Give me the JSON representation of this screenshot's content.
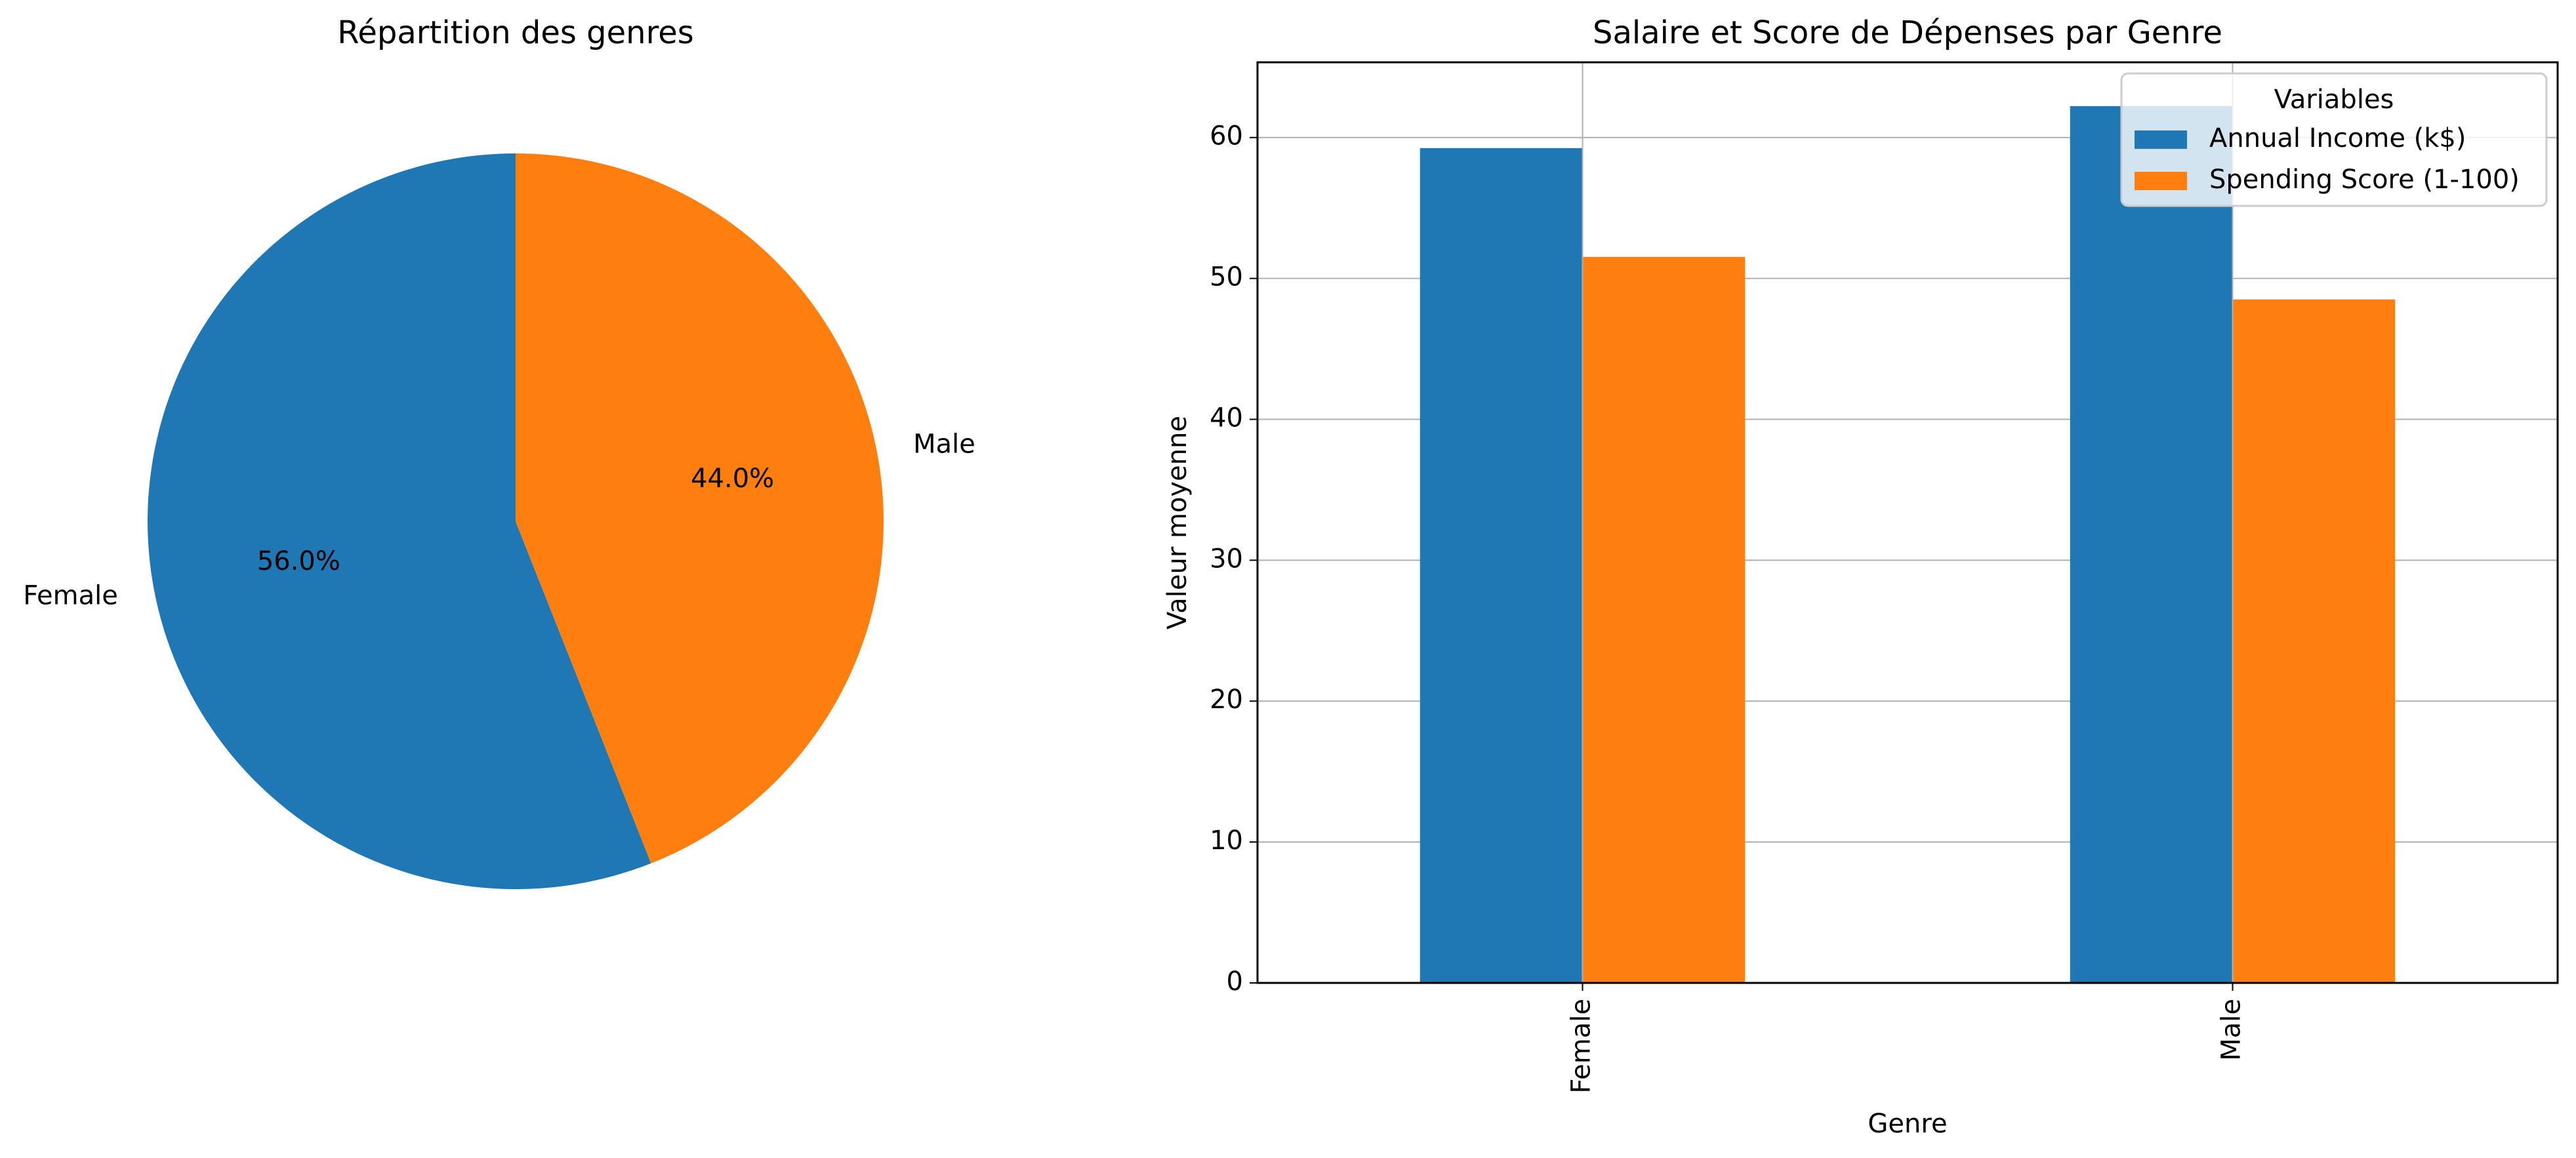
{
  "colors": {
    "blue": "#1f77b4",
    "orange": "#ff7f0e",
    "grid": "#b0b0b0",
    "axis": "#000000"
  },
  "chart_data": [
    {
      "type": "pie",
      "title": "Répartition des genres",
      "labels": [
        "Female",
        "Male"
      ],
      "values": [
        56.0,
        44.0
      ],
      "autopct": [
        "56.0%",
        "44.0%"
      ],
      "colors": [
        "#1f77b4",
        "#ff7f0e"
      ],
      "startangle": 90
    },
    {
      "type": "bar",
      "title": "Salaire et Score de Dépenses par Genre",
      "xlabel": "Genre",
      "ylabel": "Valeur moyenne",
      "categories": [
        "Female",
        "Male"
      ],
      "series": [
        {
          "name": "Annual Income (k$)",
          "values": [
            59.25,
            62.23
          ],
          "color": "#1f77b4"
        },
        {
          "name": "Spending Score (1-100)",
          "values": [
            51.53,
            48.51
          ],
          "color": "#ff7f0e"
        }
      ],
      "ylim": [
        0,
        65.34
      ],
      "yticks": [
        0,
        10,
        20,
        30,
        40,
        50,
        60
      ],
      "grid": true,
      "legend": {
        "title": "Variables",
        "placement": "top-right"
      }
    }
  ]
}
